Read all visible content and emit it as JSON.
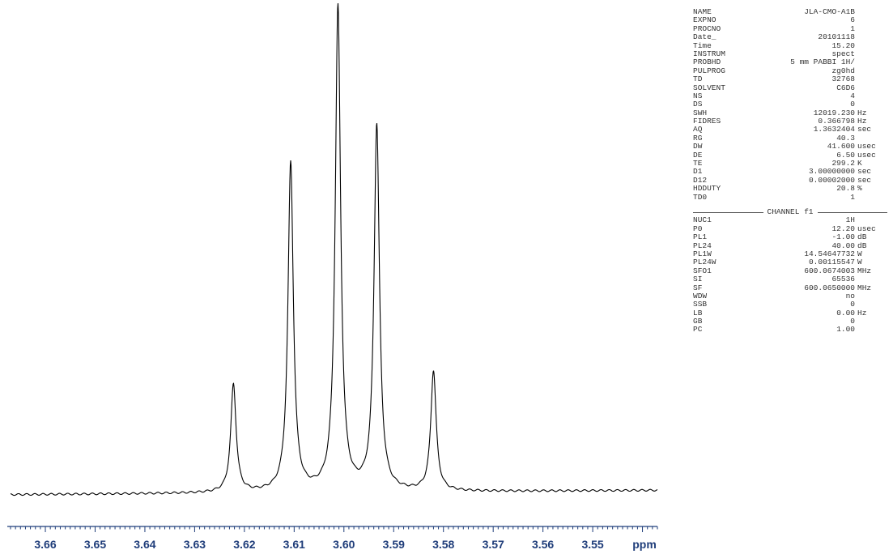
{
  "chart_data": {
    "type": "line",
    "xlabel": "ppm",
    "x_reversed": true,
    "xlim": [
      3.667,
      3.537
    ],
    "ylim": [
      0,
      1.0
    ],
    "x_ticks": [
      "3.66",
      "3.65",
      "3.64",
      "3.63",
      "3.62",
      "3.61",
      "3.60",
      "3.59",
      "3.58",
      "3.57",
      "3.56",
      "3.55"
    ],
    "grid": false,
    "peaks": [
      {
        "ppm": 3.6222,
        "height": 0.223
      },
      {
        "ppm": 3.6107,
        "height": 0.679
      },
      {
        "ppm": 3.6012,
        "height": 1.0
      },
      {
        "ppm": 3.5934,
        "height": 0.755
      },
      {
        "ppm": 3.582,
        "height": 0.248
      }
    ],
    "baseline": {
      "start": 0.002,
      "end": 0.011
    },
    "colors": {
      "trace": "#000000",
      "axis": "#1f3d7a"
    }
  },
  "acquisition_params": [
    {
      "name": "NAME",
      "value": "JLA-CMO-A1B",
      "unit": ""
    },
    {
      "name": "EXPNO",
      "value": "6",
      "unit": ""
    },
    {
      "name": "PROCNO",
      "value": "1",
      "unit": ""
    },
    {
      "name": "Date_",
      "value": "20101118",
      "unit": ""
    },
    {
      "name": "Time",
      "value": "15.20",
      "unit": ""
    },
    {
      "name": "INSTRUM",
      "value": "spect",
      "unit": ""
    },
    {
      "name": "PROBHD",
      "value": "5 mm PABBI 1H/",
      "unit": ""
    },
    {
      "name": "PULPROG",
      "value": "zg0hd",
      "unit": ""
    },
    {
      "name": "TD",
      "value": "32768",
      "unit": ""
    },
    {
      "name": "SOLVENT",
      "value": "C6D6",
      "unit": ""
    },
    {
      "name": "NS",
      "value": "4",
      "unit": ""
    },
    {
      "name": "DS",
      "value": "0",
      "unit": ""
    },
    {
      "name": "SWH",
      "value": "12019.230",
      "unit": "Hz"
    },
    {
      "name": "FIDRES",
      "value": "0.366798",
      "unit": "Hz"
    },
    {
      "name": "AQ",
      "value": "1.3632404",
      "unit": "sec"
    },
    {
      "name": "RG",
      "value": "40.3",
      "unit": ""
    },
    {
      "name": "DW",
      "value": "41.600",
      "unit": "usec"
    },
    {
      "name": "DE",
      "value": "6.50",
      "unit": "usec"
    },
    {
      "name": "TE",
      "value": "299.2",
      "unit": "K"
    },
    {
      "name": "D1",
      "value": "3.00000000",
      "unit": "sec"
    },
    {
      "name": "D12",
      "value": "0.00002000",
      "unit": "sec"
    },
    {
      "name": "HDDUTY",
      "value": "20.8",
      "unit": "%"
    },
    {
      "name": "TD0",
      "value": "1",
      "unit": ""
    }
  ],
  "channel": {
    "header": "CHANNEL f1",
    "params": [
      {
        "name": "NUC1",
        "value": "1H",
        "unit": ""
      },
      {
        "name": "P0",
        "value": "12.20",
        "unit": "usec"
      },
      {
        "name": "PL1",
        "value": "-1.00",
        "unit": "dB"
      },
      {
        "name": "PL24",
        "value": "40.00",
        "unit": "dB"
      },
      {
        "name": "PL1W",
        "value": "14.54647732",
        "unit": "W"
      },
      {
        "name": "PL24W",
        "value": "0.00115547",
        "unit": "W"
      },
      {
        "name": "SFO1",
        "value": "600.0674003",
        "unit": "MHz"
      }
    ]
  },
  "processing_params": [
    {
      "name": "SI",
      "value": "65536",
      "unit": ""
    },
    {
      "name": "SF",
      "value": "600.0650000",
      "unit": "MHz"
    },
    {
      "name": "WDW",
      "value": "no",
      "unit": ""
    },
    {
      "name": "SSB",
      "value": "0",
      "unit": ""
    },
    {
      "name": "LB",
      "value": "0.00",
      "unit": "Hz"
    },
    {
      "name": "GB",
      "value": "0",
      "unit": ""
    },
    {
      "name": "PC",
      "value": "1.00",
      "unit": ""
    }
  ]
}
